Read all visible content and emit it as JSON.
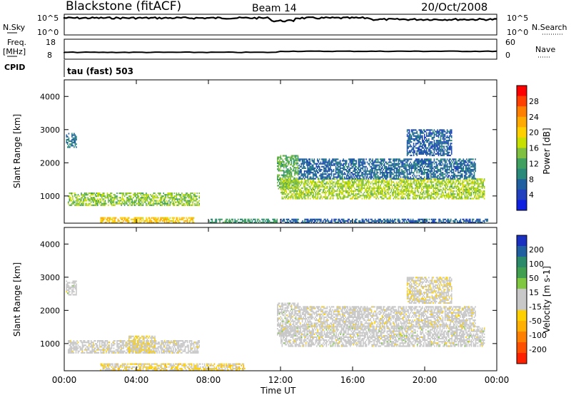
{
  "header": {
    "station": "Blackstone (fitACF)",
    "beam": "Beam 14",
    "date": "20/Oct/2008"
  },
  "top_panels": {
    "nsky": {
      "label": "N.Sky",
      "ticks": [
        "10^5",
        "10^0"
      ]
    },
    "nsearch": {
      "label": "N.Search",
      "ticks": [
        "10^5",
        "10^0"
      ]
    },
    "freq": {
      "label_line1": "Freq.",
      "label_line2": "[MHz]",
      "ticks": [
        "18",
        "8"
      ]
    },
    "nave": {
      "label": "Nave",
      "ticks": [
        "60",
        "0"
      ]
    },
    "cpid": {
      "label": "CPID",
      "value": "tau (fast) 503"
    }
  },
  "power_colorbar": {
    "title": "Power [dB]",
    "ticks": [
      "28",
      "24",
      "20",
      "16",
      "12",
      "8",
      "4"
    ],
    "colors": [
      "#ff0000",
      "#ff4000",
      "#ff8000",
      "#ffaa00",
      "#ffd000",
      "#c8e000",
      "#80c040",
      "#40a060",
      "#2a8a7a",
      "#2060a0",
      "#2040c0",
      "#1020e0"
    ]
  },
  "velocity_colorbar": {
    "title": "Velocity [m s-1]",
    "ticks": [
      "200",
      "100",
      "50",
      "15",
      "-15",
      "-50",
      "-100",
      "-200"
    ],
    "colors": [
      "#1a30c0",
      "#2060a0",
      "#2a8a6a",
      "#40a050",
      "#80c840",
      "#c8c8c8",
      "#c8c8c8",
      "#ffd000",
      "#ffb000",
      "#ff8000",
      "#ff5000",
      "#ff2000"
    ]
  },
  "x_axis": {
    "label": "Time UT",
    "ticks": [
      "00:00",
      "04:00",
      "08:00",
      "12:00",
      "16:00",
      "20:00",
      "00:00"
    ],
    "range_hours": [
      0,
      24
    ]
  },
  "chart_data": [
    {
      "type": "heatmap",
      "title": "Power",
      "ylabel": "Slant Range [km]",
      "ylim": [
        180,
        4500
      ],
      "yticks": [
        "4000",
        "3000",
        "2000",
        "1000"
      ],
      "yticks_values": [
        4000,
        3000,
        2000,
        1000
      ],
      "quantity": "Power [dB]",
      "value_range": [
        0,
        30
      ],
      "regions": [
        {
          "t": [
            0.1,
            0.7
          ],
          "r": [
            2450,
            2900
          ],
          "v": 7
        },
        {
          "t": [
            0.2,
            7.5
          ],
          "r": [
            700,
            1100
          ],
          "v": 14
        },
        {
          "t": [
            2.0,
            7.2
          ],
          "r": [
            180,
            350
          ],
          "v": 20
        },
        {
          "t": [
            8.0,
            11.8
          ],
          "r": [
            180,
            300
          ],
          "v": 10
        },
        {
          "t": [
            11.8,
            13.0
          ],
          "r": [
            1200,
            2200
          ],
          "v": 12
        },
        {
          "t": [
            12.0,
            23.3
          ],
          "r": [
            900,
            1500
          ],
          "v": 15
        },
        {
          "t": [
            13.0,
            22.8
          ],
          "r": [
            1500,
            2100
          ],
          "v": 6
        },
        {
          "t": [
            19.0,
            21.5
          ],
          "r": [
            2200,
            3000
          ],
          "v": 5
        },
        {
          "t": [
            12.0,
            23.5
          ],
          "r": [
            180,
            280
          ],
          "v": 5
        }
      ]
    },
    {
      "type": "heatmap",
      "title": "Velocity",
      "ylabel": "Slant Range [km]",
      "ylim": [
        180,
        4500
      ],
      "yticks": [
        "4000",
        "3000",
        "2000",
        "1000"
      ],
      "yticks_values": [
        4000,
        3000,
        2000,
        1000
      ],
      "quantity": "Velocity [m s-1]",
      "value_range": [
        -250,
        250
      ],
      "regions": [
        {
          "t": [
            0.1,
            0.7
          ],
          "r": [
            2450,
            2900
          ],
          "v": 0
        },
        {
          "t": [
            0.2,
            7.5
          ],
          "r": [
            700,
            1100
          ],
          "v": -5
        },
        {
          "t": [
            3.5,
            5.0
          ],
          "r": [
            700,
            1200
          ],
          "v": -40
        },
        {
          "t": [
            2.0,
            10.0
          ],
          "r": [
            180,
            400
          ],
          "v": -50
        },
        {
          "t": [
            11.8,
            13.0
          ],
          "r": [
            1200,
            2200
          ],
          "v": 0
        },
        {
          "t": [
            12.0,
            23.3
          ],
          "r": [
            900,
            1500
          ],
          "v": 0
        },
        {
          "t": [
            13.0,
            22.8
          ],
          "r": [
            1500,
            2100
          ],
          "v": -5
        },
        {
          "t": [
            19.0,
            21.5
          ],
          "r": [
            2200,
            3000
          ],
          "v": -20
        }
      ]
    }
  ]
}
